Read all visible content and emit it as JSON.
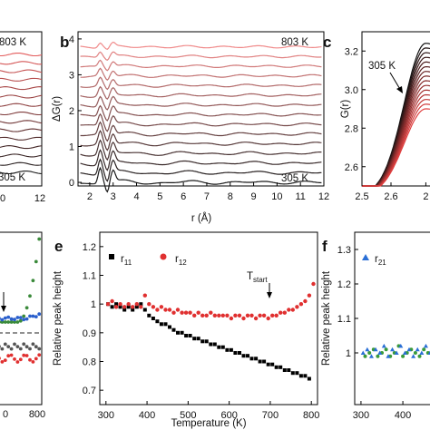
{
  "figure": {
    "panels": [
      {
        "id": "a",
        "letter": "",
        "annotations": [
          "803 K",
          "305 K"
        ],
        "x_ticks": [
          "10",
          "12"
        ]
      },
      {
        "id": "b",
        "letter": "b",
        "annotations": [
          "803 K",
          "305 K"
        ]
      },
      {
        "id": "c",
        "letter": "c",
        "annotations": [
          "305 K"
        ]
      },
      {
        "id": "d",
        "letter": "",
        "annotations": [],
        "x_ticks": [
          "0",
          "800"
        ]
      },
      {
        "id": "e",
        "letter": "e"
      },
      {
        "id": "f",
        "letter": "f"
      }
    ]
  },
  "chart_data": [
    {
      "id": "a",
      "type": "line",
      "x_visible_range": [
        8.8,
        12
      ],
      "curve_count": 15,
      "series_colors": "black (305 K) to light red (803 K)",
      "annotations": [
        "803 K",
        "305 K"
      ]
    },
    {
      "id": "b",
      "type": "line",
      "xlabel": "r (Å)",
      "ylabel": "ΔG(r)",
      "xlim": [
        1.5,
        12
      ],
      "ylim": [
        -0.1,
        4.2
      ],
      "x_ticks": [
        2,
        3,
        4,
        5,
        6,
        7,
        8,
        9,
        10,
        11,
        12
      ],
      "y_ticks": [
        0,
        1,
        2,
        3,
        4
      ],
      "curve_count": 15,
      "curve_offset_step": 0.27,
      "low_T_color": "#1a1a1a",
      "high_T_color": "#f08a8a",
      "annotations": [
        "803 K",
        "305 K"
      ]
    },
    {
      "id": "c",
      "type": "line",
      "xlabel": "",
      "ylabel": "G(r)",
      "xlim": [
        2.5,
        2.75
      ],
      "ylim": [
        2.5,
        3.3
      ],
      "x_ticks": [
        2.5,
        2.6
      ],
      "x_tick_labels": [
        "2.5",
        "2.6",
        "2"
      ],
      "y_ticks": [
        2.6,
        2.8,
        3.0,
        3.2
      ],
      "curve_count": 15,
      "curve_peak_G_from": 3.24,
      "curve_peak_G_to": 2.9,
      "annotations": [
        "305 K"
      ]
    },
    {
      "id": "d",
      "type": "scatter",
      "x_ticks_visible": [
        "0",
        "800"
      ],
      "series": [
        {
          "name": "",
          "color": "#3a8a3a",
          "trend": "rising at high temperature"
        },
        {
          "name": "",
          "color": "#2a5fcc",
          "trend": "flat near baseline"
        },
        {
          "name": "",
          "color": "#555555",
          "trend": "flat below dashed line"
        },
        {
          "name": "",
          "color": "#e03030",
          "trend": "flat below dashed line"
        }
      ]
    },
    {
      "id": "e",
      "type": "scatter",
      "xlabel": "Temperature (K)",
      "ylabel": "Relative peak height",
      "xlim": [
        285,
        815
      ],
      "ylim": [
        0.65,
        1.25
      ],
      "x_ticks": [
        300,
        400,
        500,
        600,
        700,
        800
      ],
      "y_ticks": [
        0.7,
        0.8,
        0.9,
        1.0,
        1.1,
        1.2
      ],
      "legend": [
        {
          "name": "r",
          "sub": "11",
          "color": "#000000",
          "marker": "square"
        },
        {
          "name": "r",
          "sub": "12",
          "color": "#e03030",
          "marker": "circle"
        }
      ],
      "annotation": {
        "text": "T",
        "sub": "start",
        "x": 725
      },
      "series": [
        {
          "name": "r11",
          "color": "#000000",
          "x": [
            305,
            315,
            325,
            335,
            345,
            355,
            365,
            375,
            385,
            395,
            405,
            415,
            425,
            435,
            445,
            455,
            465,
            475,
            485,
            495,
            505,
            515,
            525,
            535,
            545,
            555,
            565,
            575,
            585,
            595,
            605,
            615,
            625,
            635,
            645,
            655,
            665,
            675,
            685,
            695,
            705,
            715,
            725,
            735,
            745,
            755,
            765,
            775,
            785,
            795
          ],
          "y": [
            1.0,
            0.99,
            1.0,
            0.99,
            0.98,
            0.99,
            0.98,
            0.99,
            1.0,
            0.98,
            0.96,
            0.95,
            0.94,
            0.93,
            0.93,
            0.92,
            0.91,
            0.9,
            0.9,
            0.89,
            0.89,
            0.88,
            0.88,
            0.87,
            0.87,
            0.86,
            0.86,
            0.85,
            0.85,
            0.84,
            0.84,
            0.83,
            0.83,
            0.82,
            0.82,
            0.81,
            0.81,
            0.8,
            0.8,
            0.79,
            0.79,
            0.78,
            0.78,
            0.77,
            0.77,
            0.76,
            0.76,
            0.75,
            0.75,
            0.74
          ]
        },
        {
          "name": "r12",
          "color": "#e03030",
          "x": [
            305,
            315,
            325,
            335,
            345,
            355,
            365,
            375,
            385,
            395,
            405,
            415,
            425,
            435,
            445,
            455,
            465,
            475,
            485,
            495,
            505,
            515,
            525,
            535,
            545,
            555,
            565,
            575,
            585,
            595,
            605,
            615,
            625,
            635,
            645,
            655,
            665,
            675,
            685,
            695,
            705,
            715,
            725,
            735,
            745,
            755,
            765,
            775,
            785,
            795,
            805
          ],
          "y": [
            1.0,
            1.01,
            0.99,
            1.0,
            0.99,
            1.0,
            0.99,
            1.0,
            0.99,
            1.03,
            1.0,
            0.99,
            0.98,
            0.99,
            0.98,
            0.98,
            0.97,
            0.98,
            0.97,
            0.97,
            0.97,
            0.96,
            0.97,
            0.96,
            0.96,
            0.97,
            0.96,
            0.96,
            0.96,
            0.96,
            0.95,
            0.96,
            0.96,
            0.95,
            0.96,
            0.96,
            0.95,
            0.96,
            0.96,
            0.95,
            0.96,
            0.96,
            0.97,
            0.97,
            0.98,
            0.98,
            0.99,
            1.0,
            1.01,
            1.03,
            1.07
          ]
        }
      ]
    },
    {
      "id": "f",
      "type": "scatter",
      "xlabel": "",
      "ylabel": "Relative peak height",
      "xlim": [
        285,
        480
      ],
      "ylim": [
        0.85,
        1.35
      ],
      "x_ticks": [
        300,
        400
      ],
      "y_ticks": [
        1.0,
        1.1,
        1.2,
        1.3
      ],
      "legend": [
        {
          "name": "r",
          "sub": "21",
          "color": "#2a6fd6",
          "marker": "triangle"
        }
      ],
      "series": [
        {
          "name": "r21",
          "color": "#2a6fd6",
          "x": [
            305,
            315,
            325,
            335,
            345,
            355,
            365,
            375,
            385,
            395,
            405,
            415,
            425,
            435,
            445,
            455,
            465,
            475
          ],
          "y": [
            1.0,
            1.01,
            0.99,
            1.01,
            1.0,
            1.02,
            0.99,
            1.01,
            1.0,
            1.02,
            1.0,
            1.01,
            0.99,
            1.01,
            1.0,
            1.02,
            1.0,
            1.01
          ]
        },
        {
          "name": "",
          "color": "#3a9a3a",
          "x": [
            310,
            320,
            330,
            340,
            350,
            360,
            370,
            380,
            390,
            400,
            410,
            420,
            430,
            440,
            450,
            460,
            470
          ],
          "y": [
            0.99,
            1.0,
            1.01,
            0.99,
            1.0,
            1.01,
            0.99,
            1.0,
            1.02,
            0.99,
            1.0,
            1.01,
            1.0,
            0.99,
            1.01,
            1.0,
            0.99
          ]
        }
      ]
    }
  ]
}
